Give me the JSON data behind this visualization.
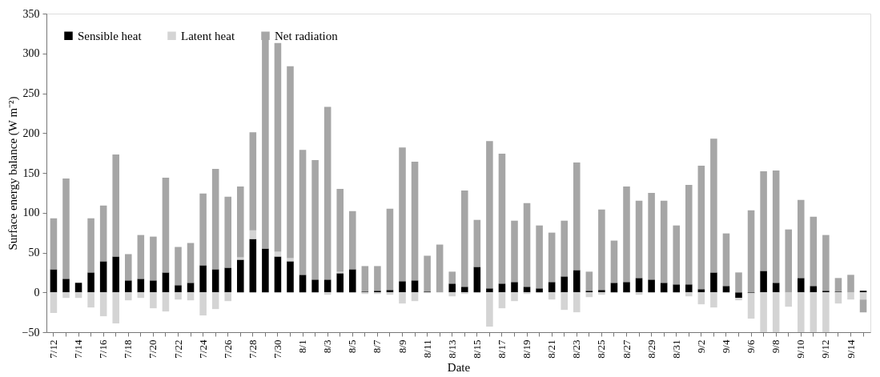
{
  "chart_data": {
    "type": "bar",
    "stacked": true,
    "xlabel": "Date",
    "ylabel": "Surface energy balance (W m⁻²)",
    "categories": [
      "7/12",
      null,
      "7/14",
      null,
      "7/16",
      null,
      "7/18",
      null,
      "7/20",
      null,
      "7/22",
      null,
      "7/24",
      null,
      "7/26",
      null,
      "7/28",
      null,
      "7/30",
      null,
      "8/1",
      null,
      "8/3",
      null,
      "8/5",
      null,
      "8/7",
      null,
      "8/9",
      null,
      "8/11",
      null,
      "8/13",
      null,
      "8/15",
      null,
      "8/17",
      null,
      "8/19",
      null,
      "8/21",
      null,
      "8/23",
      null,
      "8/25",
      null,
      "8/27",
      null,
      "8/29",
      null,
      "8/31",
      null,
      "9/2",
      null,
      "9/4",
      null,
      "9/6",
      null,
      "9/8",
      null,
      "9/10",
      null,
      "9/12",
      null,
      "9/14",
      null
    ],
    "series": [
      {
        "name": "Sensible heat",
        "color": "#000000",
        "values": [
          29,
          17,
          12,
          25,
          39,
          45,
          15,
          17,
          15,
          25,
          9,
          12,
          34,
          29,
          31,
          41,
          67,
          55,
          45,
          39,
          22,
          16,
          16,
          24,
          29,
          1,
          2,
          3,
          14,
          15,
          1,
          0,
          11,
          7,
          32,
          5,
          11,
          13,
          7,
          5,
          13,
          20,
          28,
          2,
          3,
          12,
          13,
          18,
          16,
          12,
          10,
          10,
          4,
          25,
          8,
          -7,
          -1,
          27,
          12,
          0,
          18,
          8,
          2,
          1,
          0,
          2
        ]
      },
      {
        "name": "Latent heat",
        "color": "#d4d4d4",
        "values": [
          -26,
          -7,
          -7,
          -19,
          -30,
          -39,
          -10,
          -7,
          -20,
          -24,
          -9,
          -10,
          -29,
          -21,
          -11,
          3,
          11,
          0,
          6,
          4,
          0,
          0,
          -3,
          2,
          null,
          -2,
          -2,
          -3,
          -14,
          -11,
          -1,
          null,
          -5,
          -2,
          0,
          -43,
          -20,
          -11,
          -2,
          0,
          -9,
          -22,
          -25,
          -6,
          -3,
          0,
          0,
          -3,
          0,
          0,
          0,
          -5,
          -15,
          -19,
          0,
          -3,
          -32,
          -50,
          -50,
          -18,
          -50,
          -50,
          -50,
          -14,
          -9,
          -9
        ]
      },
      {
        "name": "Net radiation",
        "color": "#a6a6a6",
        "values": [
          64,
          126,
          null,
          68,
          70,
          128,
          33,
          55,
          55,
          119,
          48,
          50,
          90,
          126,
          89,
          89,
          123,
          262,
          262,
          241,
          157,
          150,
          217,
          104,
          73,
          32,
          31,
          102,
          168,
          149,
          45,
          60,
          15,
          121,
          59,
          185,
          163,
          77,
          105,
          79,
          62,
          70,
          135,
          24,
          101,
          53,
          120,
          97,
          109,
          103,
          74,
          125,
          155,
          168,
          66,
          25,
          103,
          125,
          141,
          79,
          98,
          87,
          70,
          17,
          22,
          -16
        ]
      }
    ],
    "ylim": [
      -50,
      350
    ],
    "yticks": [
      -50,
      0,
      50,
      100,
      150,
      200,
      250,
      300,
      350
    ],
    "grid": false,
    "legend": "top left"
  }
}
